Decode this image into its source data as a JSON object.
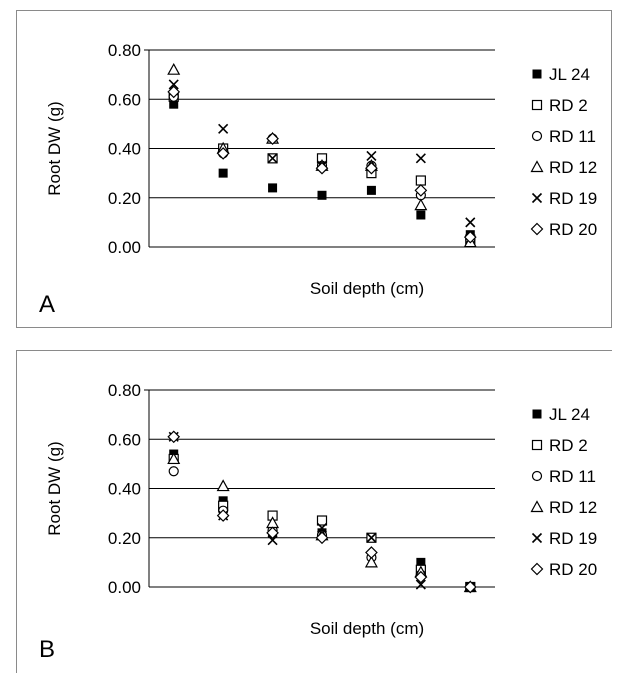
{
  "chart_data": [
    {
      "type": "scatter",
      "panel_label": "A",
      "xlabel": "Soil depth (cm)",
      "ylabel": "Root DW (g)",
      "ylim": [
        0,
        0.8
      ],
      "yticks": [
        "0.00",
        "0.20",
        "0.40",
        "0.60",
        "0.80"
      ],
      "grid": true,
      "legend_position": "right",
      "depth_groups": 7,
      "series": [
        {
          "name": "JL 24",
          "marker": "filled-square",
          "values": [
            0.58,
            0.3,
            0.24,
            0.21,
            0.23,
            0.13,
            0.05
          ]
        },
        {
          "name": "RD 2",
          "marker": "open-square",
          "values": [
            0.61,
            0.4,
            0.36,
            0.36,
            0.3,
            0.27,
            0.03
          ]
        },
        {
          "name": "RD 11",
          "marker": "open-circle",
          "values": [
            0.61,
            0.38,
            0.44,
            0.33,
            0.33,
            0.21,
            0.03
          ]
        },
        {
          "name": "RD 12",
          "marker": "open-triangle",
          "values": [
            0.72,
            0.4,
            0.44,
            0.33,
            0.33,
            0.17,
            0.02
          ]
        },
        {
          "name": "RD 19",
          "marker": "cross",
          "values": [
            0.66,
            0.48,
            0.36,
            0.33,
            0.37,
            0.36,
            0.1
          ]
        },
        {
          "name": "RD 20",
          "marker": "open-diamond",
          "values": [
            0.63,
            0.38,
            0.44,
            0.32,
            0.32,
            0.23,
            0.04
          ]
        }
      ]
    },
    {
      "type": "scatter",
      "panel_label": "B",
      "xlabel": "Soil depth (cm)",
      "ylabel": "Root DW (g)",
      "ylim": [
        0,
        0.8
      ],
      "yticks": [
        "0.00",
        "0.20",
        "0.40",
        "0.60",
        "0.80"
      ],
      "grid": true,
      "legend_position": "right",
      "depth_groups": 7,
      "series": [
        {
          "name": "JL 24",
          "marker": "filled-square",
          "values": [
            0.54,
            0.35,
            0.22,
            0.22,
            0.2,
            0.1,
            0.0
          ]
        },
        {
          "name": "RD 2",
          "marker": "open-square",
          "values": [
            0.52,
            0.33,
            0.29,
            0.27,
            0.2,
            0.07,
            0.0
          ]
        },
        {
          "name": "RD 11",
          "marker": "open-circle",
          "values": [
            0.47,
            0.31,
            0.23,
            0.21,
            0.12,
            0.05,
            0.0
          ]
        },
        {
          "name": "RD 12",
          "marker": "open-triangle",
          "values": [
            0.52,
            0.41,
            0.26,
            0.21,
            0.1,
            0.06,
            0.0
          ]
        },
        {
          "name": "RD 19",
          "marker": "cross",
          "values": [
            0.61,
            0.29,
            0.19,
            0.24,
            0.2,
            0.01,
            0.0
          ]
        },
        {
          "name": "RD 20",
          "marker": "open-diamond",
          "values": [
            0.61,
            0.29,
            0.22,
            0.2,
            0.14,
            0.04,
            0.0
          ]
        }
      ]
    }
  ]
}
